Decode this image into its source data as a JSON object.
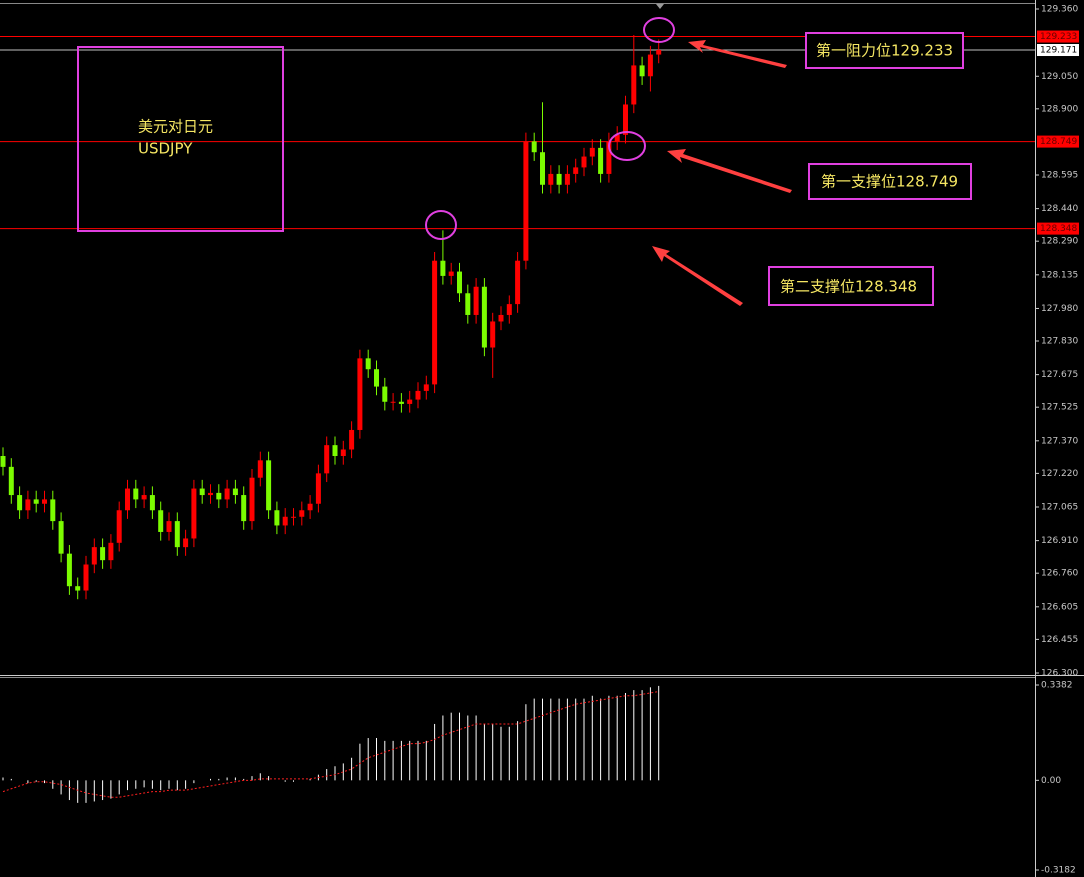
{
  "chart_data": {
    "type": "candlestick",
    "up_color": "#ff0000",
    "down_color": "#7cfc00",
    "candles": [
      [
        127.3,
        127.34,
        127.21,
        127.25
      ],
      [
        127.25,
        127.29,
        127.08,
        127.12
      ],
      [
        127.12,
        127.16,
        127.01,
        127.05
      ],
      [
        127.05,
        127.14,
        127.01,
        127.1
      ],
      [
        127.1,
        127.14,
        127.04,
        127.08
      ],
      [
        127.08,
        127.14,
        127.04,
        127.1
      ],
      [
        127.1,
        127.14,
        126.96,
        127.0
      ],
      [
        127.0,
        127.04,
        126.81,
        126.85
      ],
      [
        126.85,
        126.89,
        126.66,
        126.7
      ],
      [
        126.7,
        126.74,
        126.64,
        126.68
      ],
      [
        126.68,
        126.84,
        126.64,
        126.8
      ],
      [
        126.8,
        126.92,
        126.76,
        126.88
      ],
      [
        126.88,
        126.92,
        126.78,
        126.82
      ],
      [
        126.82,
        126.94,
        126.78,
        126.9
      ],
      [
        126.9,
        127.09,
        126.86,
        127.05
      ],
      [
        127.05,
        127.19,
        127.01,
        127.15
      ],
      [
        127.15,
        127.19,
        127.06,
        127.1
      ],
      [
        127.1,
        127.16,
        127.06,
        127.12
      ],
      [
        127.12,
        127.16,
        127.01,
        127.05
      ],
      [
        127.05,
        127.09,
        126.91,
        126.95
      ],
      [
        126.95,
        127.04,
        126.91,
        127.0
      ],
      [
        127.0,
        127.04,
        126.84,
        126.88
      ],
      [
        126.88,
        126.96,
        126.84,
        126.92
      ],
      [
        126.92,
        127.19,
        126.88,
        127.15
      ],
      [
        127.15,
        127.19,
        127.08,
        127.12
      ],
      [
        127.12,
        127.17,
        127.08,
        127.13
      ],
      [
        127.13,
        127.17,
        127.06,
        127.1
      ],
      [
        127.1,
        127.19,
        127.06,
        127.15
      ],
      [
        127.15,
        127.19,
        127.08,
        127.12
      ],
      [
        127.12,
        127.16,
        126.96,
        127.0
      ],
      [
        127.0,
        127.24,
        126.96,
        127.2
      ],
      [
        127.2,
        127.32,
        127.16,
        127.28
      ],
      [
        127.28,
        127.32,
        127.01,
        127.05
      ],
      [
        127.05,
        127.09,
        126.94,
        126.98
      ],
      [
        126.98,
        127.06,
        126.94,
        127.02
      ],
      [
        127.02,
        127.06,
        126.98,
        127.02
      ],
      [
        127.02,
        127.09,
        126.98,
        127.05
      ],
      [
        127.05,
        127.12,
        127.01,
        127.08
      ],
      [
        127.08,
        127.26,
        127.04,
        127.22
      ],
      [
        127.22,
        127.39,
        127.18,
        127.35
      ],
      [
        127.35,
        127.39,
        127.26,
        127.3
      ],
      [
        127.3,
        127.37,
        127.26,
        127.33
      ],
      [
        127.33,
        127.46,
        127.29,
        127.42
      ],
      [
        127.42,
        127.79,
        127.38,
        127.75
      ],
      [
        127.75,
        127.79,
        127.66,
        127.7
      ],
      [
        127.7,
        127.74,
        127.58,
        127.62
      ],
      [
        127.62,
        127.66,
        127.51,
        127.55
      ],
      [
        127.55,
        127.59,
        127.51,
        127.55
      ],
      [
        127.55,
        127.59,
        127.5,
        127.54
      ],
      [
        127.54,
        127.6,
        127.5,
        127.56
      ],
      [
        127.56,
        127.64,
        127.52,
        127.6
      ],
      [
        127.6,
        127.67,
        127.56,
        127.63
      ],
      [
        127.63,
        128.24,
        127.59,
        128.2
      ],
      [
        128.2,
        128.34,
        128.09,
        128.13
      ],
      [
        128.13,
        128.19,
        128.09,
        128.15
      ],
      [
        128.15,
        128.19,
        128.01,
        128.05
      ],
      [
        128.05,
        128.09,
        127.91,
        127.95
      ],
      [
        127.95,
        128.12,
        127.91,
        128.08
      ],
      [
        128.08,
        128.12,
        127.76,
        127.8
      ],
      [
        127.8,
        127.96,
        127.66,
        127.92
      ],
      [
        127.92,
        127.99,
        127.88,
        127.95
      ],
      [
        127.95,
        128.04,
        127.91,
        128.0
      ],
      [
        128.0,
        128.24,
        127.96,
        128.2
      ],
      [
        128.2,
        128.79,
        128.16,
        128.75
      ],
      [
        128.75,
        128.79,
        128.66,
        128.7
      ],
      [
        128.7,
        128.93,
        128.51,
        128.55
      ],
      [
        128.55,
        128.64,
        128.51,
        128.6
      ],
      [
        128.6,
        128.64,
        128.51,
        128.55
      ],
      [
        128.55,
        128.64,
        128.51,
        128.6
      ],
      [
        128.6,
        128.67,
        128.56,
        128.63
      ],
      [
        128.63,
        128.72,
        128.59,
        128.68
      ],
      [
        128.68,
        128.76,
        128.64,
        128.72
      ],
      [
        128.72,
        128.76,
        128.56,
        128.6
      ],
      [
        128.6,
        128.79,
        128.56,
        128.75
      ],
      [
        128.75,
        128.82,
        128.71,
        128.78
      ],
      [
        128.78,
        128.96,
        128.74,
        128.92
      ],
      [
        128.92,
        129.24,
        128.88,
        129.1
      ],
      [
        129.1,
        129.14,
        129.01,
        129.05
      ],
      [
        129.05,
        129.19,
        128.98,
        129.15
      ],
      [
        129.15,
        129.22,
        129.11,
        129.171
      ]
    ],
    "ylim": [
      126.3,
      129.36
    ],
    "yticks": [
      {
        "value": 129.36,
        "label": "129.360"
      },
      {
        "value": 129.05,
        "label": "129.050"
      },
      {
        "value": 128.9,
        "label": "128.900"
      },
      128.595,
      {
        "value": 128.44,
        "label": "128.440"
      },
      {
        "value": 128.29,
        "label": "128.290"
      },
      128.135,
      {
        "value": 127.98,
        "label": "127.980"
      },
      {
        "value": 127.83,
        "label": "127.830"
      },
      127.675,
      127.525,
      {
        "value": 127.37,
        "label": "127.370"
      },
      {
        "value": 127.22,
        "label": "127.220"
      },
      127.065,
      {
        "value": 126.91,
        "label": "126.910"
      },
      {
        "value": 126.76,
        "label": "126.760"
      },
      126.605,
      126.455,
      {
        "value": 126.3,
        "label": "126.300"
      }
    ],
    "levels": [
      {
        "value": 129.233,
        "color": "#ff0000"
      },
      {
        "value": 129.171,
        "color": "#c0c0c0"
      },
      {
        "value": 128.749,
        "color": "#ff0000"
      },
      {
        "value": 128.348,
        "color": "#ff0000"
      }
    ],
    "indicator": {
      "histogram": [
        0.01,
        0.005,
        0,
        -0.01,
        -0.005,
        -0.01,
        -0.03,
        -0.05,
        -0.07,
        -0.08,
        -0.08,
        -0.075,
        -0.07,
        -0.065,
        -0.05,
        -0.035,
        -0.03,
        -0.025,
        -0.03,
        -0.035,
        -0.03,
        -0.035,
        -0.03,
        -0.01,
        0,
        0.005,
        0.005,
        0.01,
        0.01,
        0.005,
        0.015,
        0.025,
        0.015,
        0,
        -0.005,
        -0.005,
        0,
        0.005,
        0.02,
        0.04,
        0.05,
        0.06,
        0.08,
        0.13,
        0.15,
        0.15,
        0.14,
        0.14,
        0.14,
        0.14,
        0.14,
        0.14,
        0.2,
        0.23,
        0.24,
        0.24,
        0.23,
        0.23,
        0.2,
        0.2,
        0.19,
        0.19,
        0.21,
        0.27,
        0.29,
        0.29,
        0.29,
        0.29,
        0.29,
        0.29,
        0.29,
        0.3,
        0.29,
        0.3,
        0.3,
        0.31,
        0.32,
        0.32,
        0.33,
        0.335
      ],
      "signal": [
        -0.04,
        -0.03,
        -0.02,
        -0.01,
        -0.005,
        -0.005,
        -0.01,
        -0.015,
        -0.025,
        -0.035,
        -0.045,
        -0.05,
        -0.055,
        -0.06,
        -0.06,
        -0.055,
        -0.05,
        -0.045,
        -0.04,
        -0.04,
        -0.035,
        -0.035,
        -0.035,
        -0.03,
        -0.025,
        -0.02,
        -0.015,
        -0.01,
        -0.005,
        0,
        0,
        0.005,
        0.005,
        0.005,
        0.005,
        0.005,
        0.005,
        0.005,
        0.01,
        0.015,
        0.02,
        0.03,
        0.04,
        0.06,
        0.08,
        0.09,
        0.1,
        0.11,
        0.12,
        0.13,
        0.13,
        0.135,
        0.145,
        0.16,
        0.17,
        0.18,
        0.19,
        0.2,
        0.2,
        0.2,
        0.2,
        0.2,
        0.2,
        0.21,
        0.22,
        0.23,
        0.24,
        0.25,
        0.26,
        0.27,
        0.275,
        0.28,
        0.285,
        0.29,
        0.295,
        0.3,
        0.3,
        0.305,
        0.31,
        0.315
      ],
      "histogram_color": "#ffffff",
      "signal_color": "#ff2020",
      "ylim": [
        -0.3182,
        0.3382
      ],
      "yticks": [
        0.3382,
        {
          "value": 0,
          "label": "0.00"
        },
        -0.3182
      ]
    },
    "annotations": {
      "pair_cn": "美元对日元",
      "pair": "USDJPY",
      "resistance1": "第一阻力位129.233",
      "support1": "第一支撑位128.749",
      "support2": "第二支撑位128.348"
    }
  }
}
